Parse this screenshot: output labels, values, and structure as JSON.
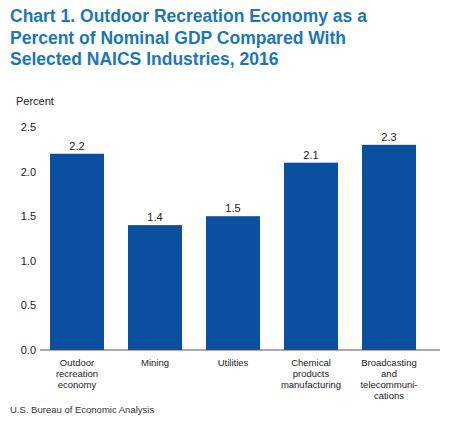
{
  "chart_data": {
    "type": "bar",
    "title": "Chart 1. Outdoor Recreation Economy as a\nPercent of Nominal GDP Compared With\nSelected NAICS Industries, 2016",
    "y_label": "Percent",
    "source": "U.S. Bureau of Economic Analysis",
    "categories": [
      "Outdoor\nrecreation\neconomy",
      "Mining",
      "Utilities",
      "Chemical\nproducts\nmanufacturing",
      "Broadcasting\nand\ntelecommuni-\ncations"
    ],
    "values": [
      2.2,
      1.4,
      1.5,
      2.1,
      2.3
    ],
    "color": "#0b4fa0",
    "ylim": [
      0,
      2.5
    ],
    "yticks": [
      {
        "value": 0,
        "label": "0.0"
      },
      0.5,
      {
        "value": 1,
        "label": "1.0"
      },
      1.5,
      {
        "value": 2,
        "label": "2.0"
      },
      2.5
    ],
    "grid": false,
    "data_labels": true
  }
}
